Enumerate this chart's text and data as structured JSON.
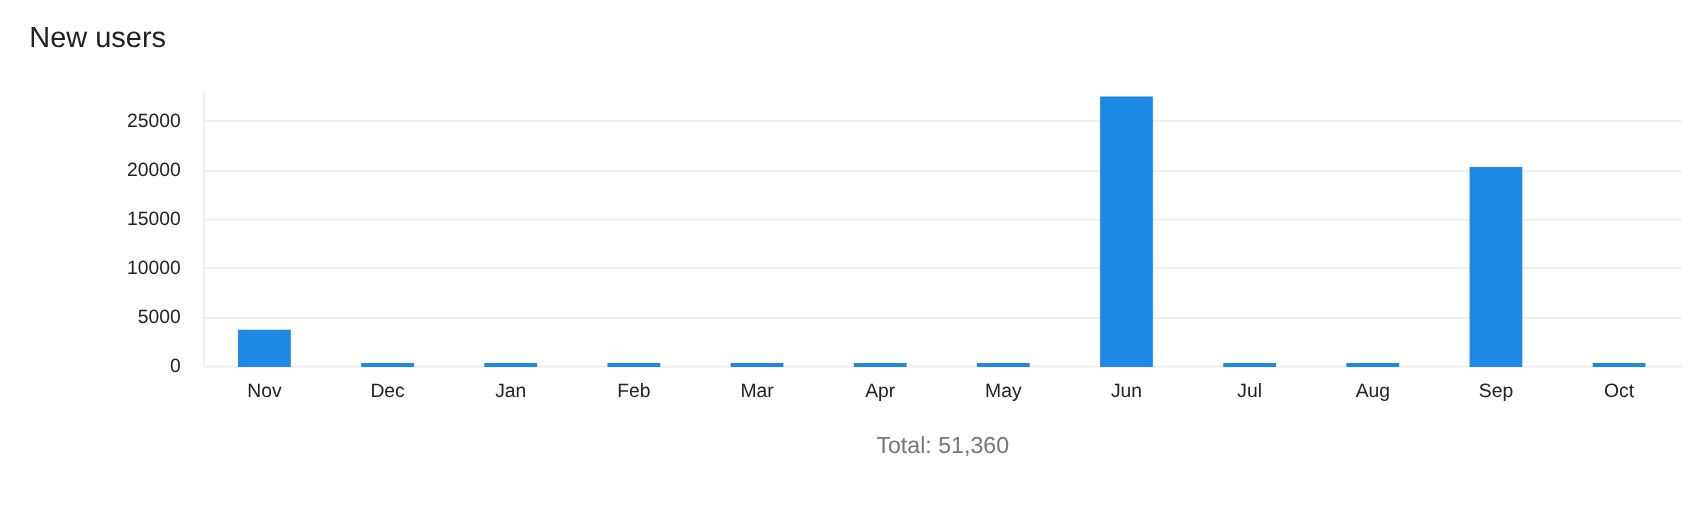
{
  "chart_data": {
    "type": "bar",
    "title": "New users",
    "categories": [
      "Nov",
      "Dec",
      "Jan",
      "Feb",
      "Mar",
      "Apr",
      "May",
      "Jun",
      "Jul",
      "Aug",
      "Sep",
      "Oct"
    ],
    "values": [
      3500,
      100,
      100,
      100,
      100,
      100,
      100,
      27300,
      100,
      100,
      20100,
      100
    ],
    "color": "#1e88e5",
    "ylim": [
      0,
      28000
    ],
    "yticks": [
      0,
      5000,
      10000,
      15000,
      20000,
      25000
    ],
    "grid": "y",
    "annotations": [
      "Total: 51,360"
    ]
  }
}
